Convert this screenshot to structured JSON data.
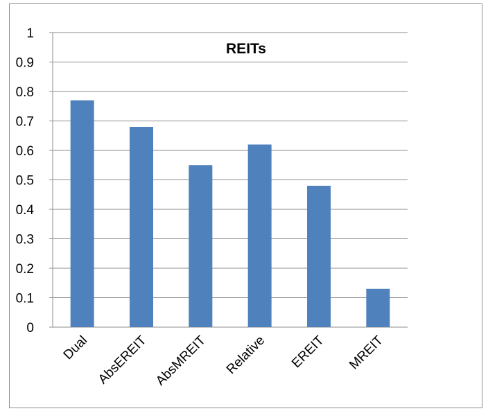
{
  "chart_data": {
    "type": "bar",
    "title": "REITs",
    "categories": [
      "Dual",
      "AbsEREIT",
      "AbsMREIT",
      "Relative",
      "EREIT",
      "MREIT"
    ],
    "values": [
      0.77,
      0.68,
      0.55,
      0.62,
      0.48,
      0.13
    ],
    "xlabel": "",
    "ylabel": "",
    "ylim": [
      0,
      1
    ],
    "yticks": [
      "0",
      "0.1",
      "0.2",
      "0.3",
      "0.4",
      "0.5",
      "0.6",
      "0.7",
      "0.8",
      "0.9",
      "1"
    ],
    "grid": true,
    "legend": "none",
    "bar_color": "#4f81bd",
    "grid_color": "#8c8c8c"
  }
}
